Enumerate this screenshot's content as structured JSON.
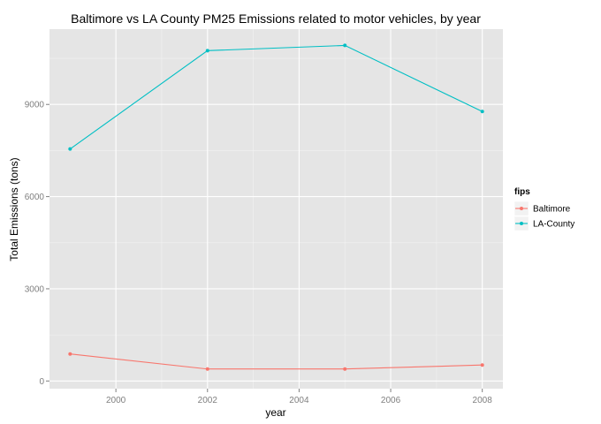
{
  "chart_data": {
    "type": "line",
    "title": "Baltimore vs LA County PM25 Emissions related to motor vehicles, by year",
    "xlabel": "year",
    "ylabel": "Total Emissions (tons)",
    "x": [
      1999,
      2002,
      2005,
      2008
    ],
    "x_ticks": [
      "2000",
      "2002",
      "2004",
      "2006",
      "2008"
    ],
    "y_ticks": [
      "0",
      "3000",
      "6000",
      "9000"
    ],
    "xlim": [
      1998.55,
      2008.45
    ],
    "ylim": [
      -250,
      11450
    ],
    "grid": true,
    "legend": {
      "title": "fips",
      "position": "right"
    },
    "series": [
      {
        "name": "Baltimore",
        "color": "#F8766D",
        "values": [
          880,
          390,
          390,
          520
        ]
      },
      {
        "name": "LA-County",
        "color": "#00BFC4",
        "values": [
          7550,
          10750,
          10920,
          8770
        ]
      }
    ]
  }
}
